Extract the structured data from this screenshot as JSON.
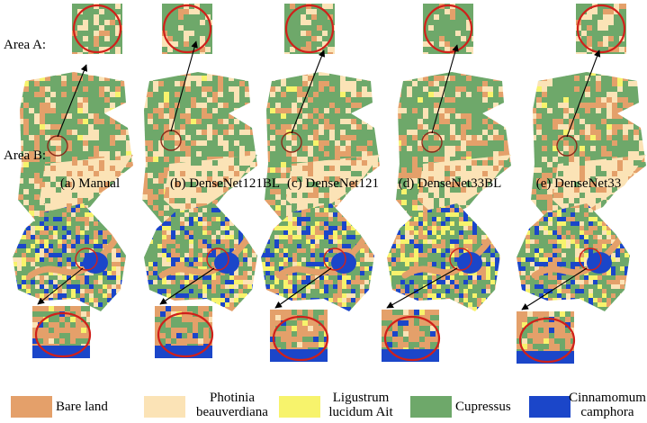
{
  "colors": {
    "bare_land": "#e4a06a",
    "photinia": "#fbe3b6",
    "ligustrum": "#f7f36c",
    "cupressus": "#6ea86a",
    "cinnamomum": "#1b46c9",
    "circle": "#d0201a"
  },
  "area_labels": {
    "a": "Area A:",
    "b": "Area B:"
  },
  "captions": [
    "(a) Manual",
    "(b) DenseNet121BL",
    "(c) DenseNet121",
    "(d) DenseNet33BL",
    "(e) DenseNet33"
  ],
  "legend": [
    {
      "label": "Bare land",
      "color_key": "bare_land"
    },
    {
      "label": "Photinia beauverdiana",
      "color_key": "photinia"
    },
    {
      "label": "Ligustrum lucidum Ait",
      "color_key": "ligustrum"
    },
    {
      "label": "Cupressus",
      "color_key": "cupressus"
    },
    {
      "label": "Cinnamomum camphora",
      "color_key": "cinnamomum"
    }
  ]
}
